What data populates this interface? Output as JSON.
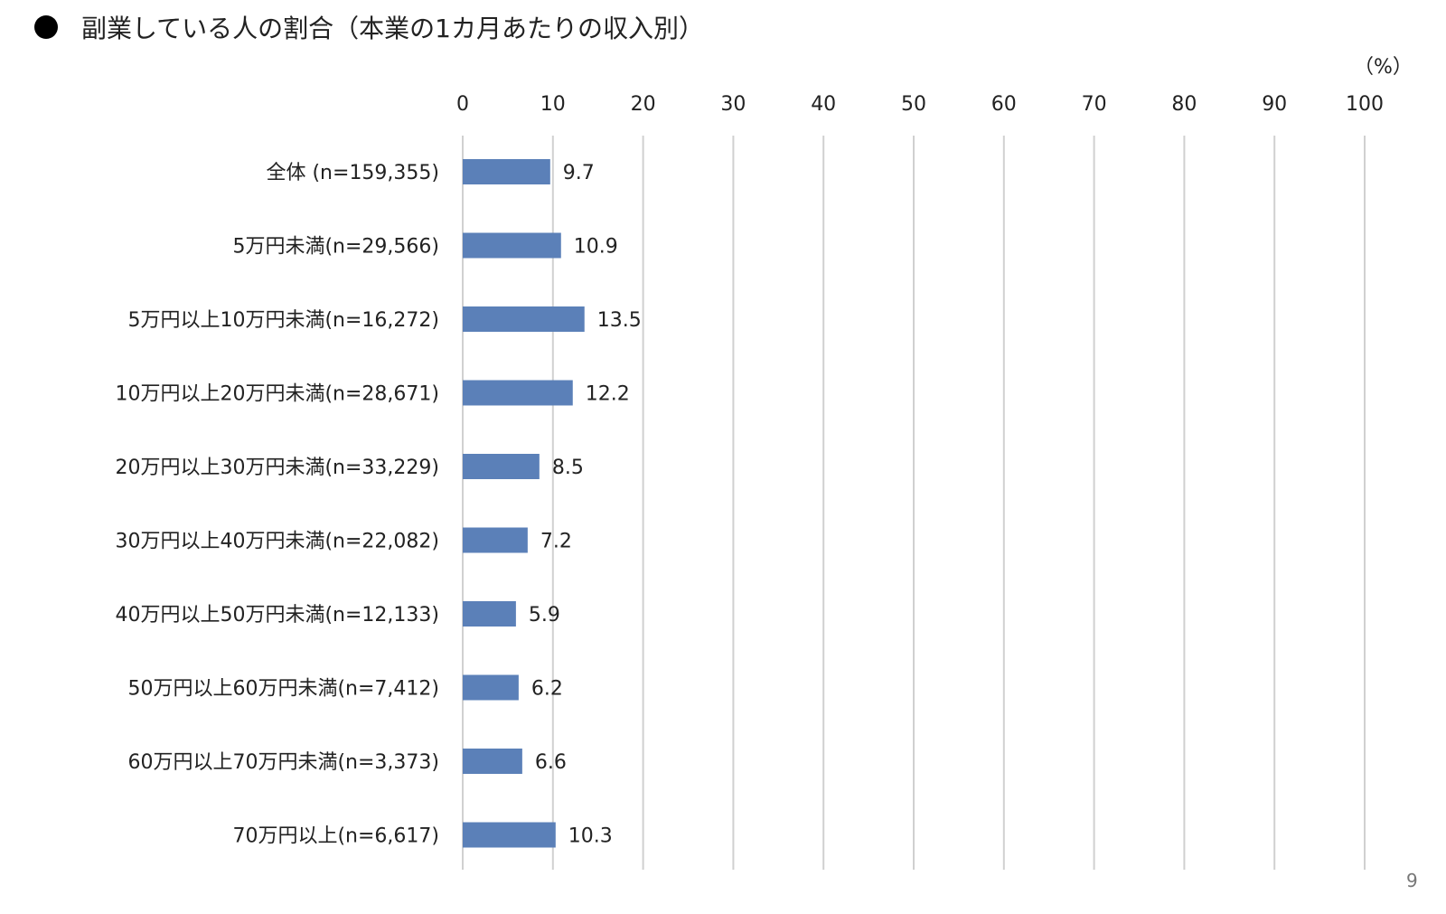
{
  "title": "副業している人の割合（本業の1カ月あたりの収入別）",
  "unit_label": "（%）",
  "page_number": "9",
  "colors": {
    "bar": "#5b80b8",
    "grid": "#d0d0d0"
  },
  "chart_data": {
    "type": "bar",
    "orientation": "horizontal",
    "title": "副業している人の割合（本業の1カ月あたりの収入別）",
    "xlim": [
      0,
      100
    ],
    "x_ticks": [
      "0",
      "10",
      "20",
      "30",
      "40",
      "50",
      "60",
      "70",
      "80",
      "90",
      "100"
    ],
    "x_tick_position": "top",
    "grid": true,
    "categories": [
      "全体 (n=159,355)",
      "5万円未満(n=29,566)",
      "5万円以上10万円未満(n=16,272)",
      "10万円以上20万円未満(n=28,671)",
      "20万円以上30万円未満(n=33,229)",
      "30万円以上40万円未満(n=22,082)",
      "40万円以上50万円未満(n=12,133)",
      "50万円以上60万円未満(n=7,412)",
      "60万円以上70万円未満(n=3,373)",
      "70万円以上(n=6,617)"
    ],
    "values": [
      9.7,
      10.9,
      13.5,
      12.2,
      8.5,
      7.2,
      5.9,
      6.2,
      6.6,
      10.3
    ],
    "value_labels": [
      "9.7",
      "10.9",
      "13.5",
      "12.2",
      "8.5",
      "7.2",
      "5.9",
      "6.2",
      "6.6",
      "10.3"
    ]
  }
}
